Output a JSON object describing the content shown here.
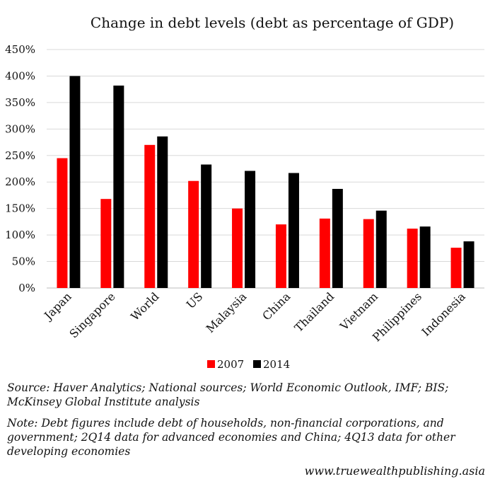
{
  "chart_data": {
    "type": "bar",
    "title": "Change in debt levels (debt as percentage of GDP)",
    "categories": [
      "Japan",
      "Singapore",
      "World",
      "US",
      "Malaysia",
      "China",
      "Thailand",
      "Vietnam",
      "Philippines",
      "Indonesia"
    ],
    "series": [
      {
        "name": "2007",
        "color": "#ff0000",
        "values": [
          245,
          168,
          270,
          202,
          150,
          120,
          131,
          130,
          112,
          76
        ]
      },
      {
        "name": "2014",
        "color": "#000000",
        "values": [
          400,
          382,
          286,
          233,
          221,
          217,
          187,
          146,
          116,
          88
        ]
      }
    ],
    "ylim": [
      0,
      450
    ],
    "yticks": [
      0,
      50,
      100,
      150,
      200,
      250,
      300,
      350,
      400,
      450
    ],
    "ytick_labels": [
      "0%",
      "50%",
      "100%",
      "150%",
      "200%",
      "250%",
      "300%",
      "350%",
      "400%",
      "450%"
    ],
    "grid": true,
    "legend": "bottom-center",
    "xlabel": "",
    "ylabel": ""
  },
  "footer": {
    "source": "Source: Haver Analytics; National sources; World Economic Outlook, IMF; BIS; McKinsey Global Institute analysis",
    "note": "Note: Debt figures include debt of households, non-financial corporations, and government; 2Q14 data for advanced economies and China; 4Q13 data for other developing economies",
    "website": "www.truewealthpublishing.asia"
  }
}
